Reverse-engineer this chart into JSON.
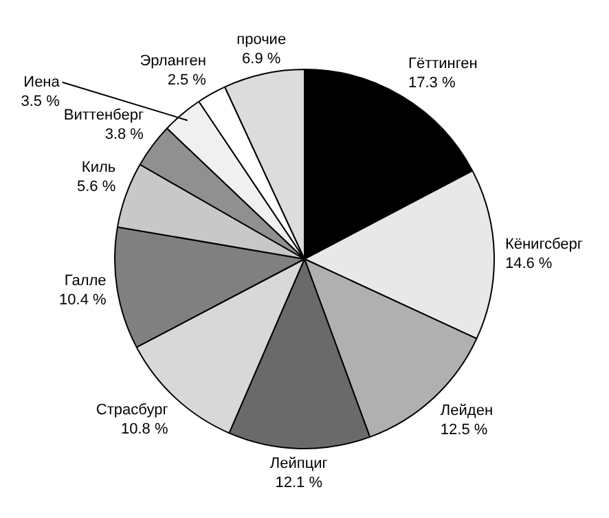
{
  "chart_data": {
    "type": "pie",
    "categories": [
      "Гёттинген",
      "Кёнигсберг",
      "Лейден",
      "Лейпциг",
      "Страсбург",
      "Галле",
      "Киль",
      "Виттенберг",
      "Иена",
      "Эрланген",
      "прочие"
    ],
    "values": [
      17.3,
      14.6,
      12.5,
      12.1,
      10.8,
      10.4,
      5.6,
      3.8,
      3.5,
      2.5,
      6.9
    ],
    "value_labels": [
      "17.3 %",
      "14.6 %",
      "12.5 %",
      "12.1 %",
      "10.8 %",
      "10.4 %",
      "5.6 %",
      "3.8 %",
      "3.5 %",
      "2.5 %",
      "6.9 %"
    ],
    "colors": [
      "#000000",
      "#e8e8e8",
      "#b0b0b0",
      "#6a6a6a",
      "#d8d8d8",
      "#808080",
      "#c8c8c8",
      "#909090",
      "#f0f0f0",
      "#ffffff",
      "#dcdcdc"
    ]
  }
}
